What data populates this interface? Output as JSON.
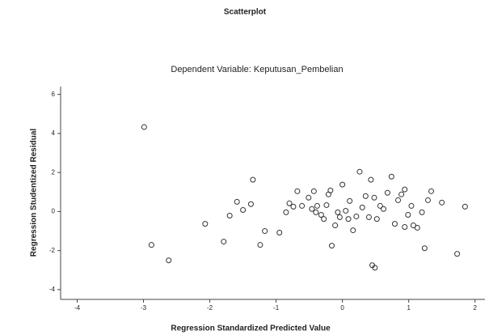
{
  "chart_data": {
    "type": "scatter",
    "title": "Scatterplot",
    "subtitle": "Dependent Variable: Keputusan_Pembelian",
    "x_label": "Regression Standardized Predicted Value",
    "y_label": "Regression Studentized Residual",
    "color": "#333333",
    "xlim": [
      -4.25,
      2.15
    ],
    "ylim": [
      -4.5,
      6.4
    ],
    "xticks": [
      -4,
      -3,
      -2,
      -1,
      0,
      1,
      2
    ],
    "yticks": [
      -4,
      -2,
      0,
      2,
      4,
      6
    ],
    "x": [
      -2.99,
      -2.88,
      -2.62,
      -2.07,
      -1.79,
      -1.7,
      -1.59,
      -1.5,
      -1.38,
      -1.35,
      -1.24,
      -1.17,
      -0.95,
      -0.85,
      -0.8,
      -0.74,
      -0.68,
      -0.61,
      -0.51,
      -0.43,
      -0.38,
      -0.32,
      -0.28,
      -0.24,
      -0.18,
      -0.16,
      -0.11,
      -0.07,
      0,
      0.05,
      0.11,
      0.16,
      0.21,
      0.26,
      0.3,
      0.35,
      0.4,
      0.43,
      0.45,
      0.48,
      0.52,
      0.57,
      0.68,
      0.74,
      0.79,
      0.84,
      0.89,
      0.94,
      0.99,
      1.04,
      1.07,
      1.13,
      1.2,
      1.24,
      1.29,
      1.34,
      1.5,
      1.73,
      1.85,
      -0.46,
      -0.4,
      -0.04,
      0.09,
      0.49,
      -0.21,
      0.62,
      0.94
    ],
    "y": [
      4.33,
      -1.71,
      -2.5,
      -0.63,
      -1.54,
      -0.21,
      0.5,
      0.08,
      0.38,
      1.63,
      -1.71,
      -1,
      -1.08,
      -0.04,
      0.42,
      0.25,
      1.04,
      0.29,
      0.71,
      1.04,
      0.29,
      -0.17,
      -0.38,
      0.33,
      1.08,
      -1.75,
      -0.71,
      -0.04,
      1.38,
      0.04,
      0.54,
      -0.96,
      -0.25,
      2.04,
      0.21,
      0.79,
      -0.29,
      1.63,
      -2.75,
      0.71,
      -0.38,
      0.29,
      0.96,
      1.79,
      -0.63,
      0.58,
      0.88,
      1.13,
      -0.17,
      0.29,
      -0.71,
      -0.83,
      -0.04,
      -1.88,
      0.58,
      1.04,
      0.46,
      -2.17,
      0.25,
      0.13,
      -0.04,
      -0.29,
      -0.38,
      -2.88,
      0.88,
      0.13,
      -0.79
    ]
  }
}
